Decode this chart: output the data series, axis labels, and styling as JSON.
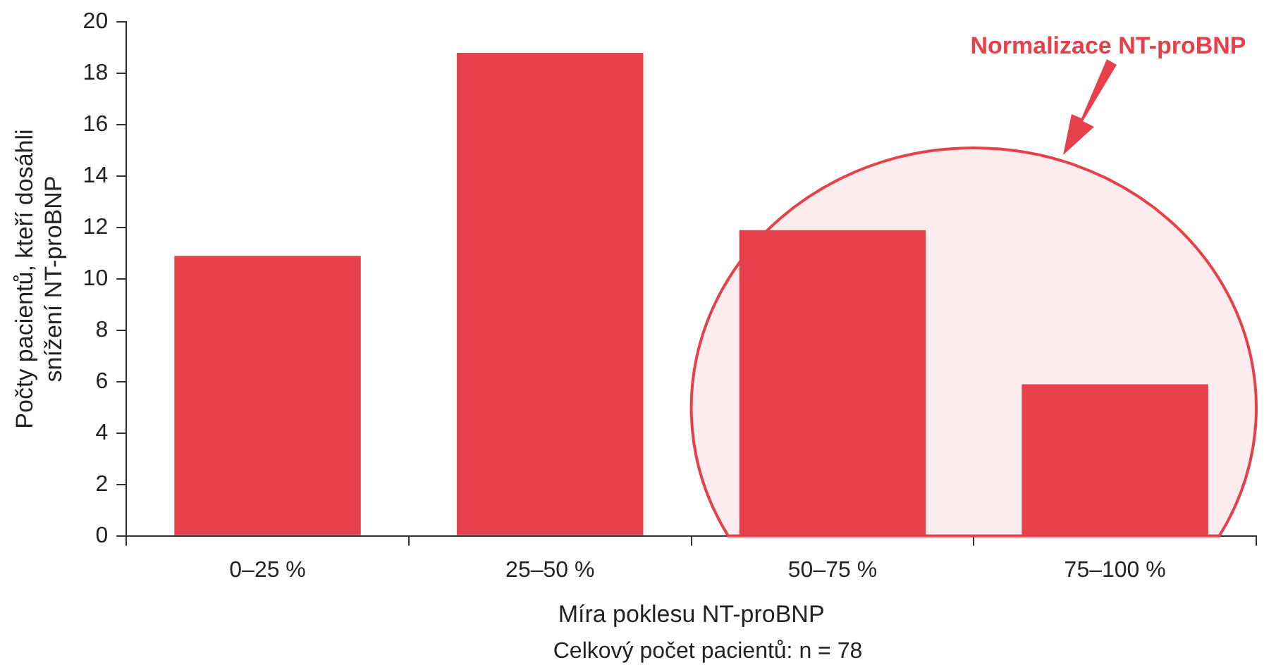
{
  "chart_data": {
    "type": "bar",
    "categories": [
      "0–25 %",
      "25–50 %",
      "50–75 %",
      "75–100 %"
    ],
    "values": [
      10.9,
      18.8,
      11.9,
      5.9
    ],
    "color": "#e8404b",
    "ylim": [
      0,
      20
    ],
    "yticks": [
      0,
      2,
      4,
      6,
      8,
      10,
      12,
      14,
      16,
      18,
      20
    ],
    "grid": false,
    "legend": false,
    "xlabel": "Míra poklesu NT-proBNP",
    "ylabel": "Počty pacientů, kteří dosáhli\nsnížení NT-proBNP",
    "bands": [
      {
        "axis": "x",
        "from": "50–75 %",
        "to": "75–100 %",
        "label": "Normalizace NT-proBNP",
        "color": "#e8404b"
      }
    ],
    "annotations": [
      "Celkový počet pacientů: n = 78"
    ]
  }
}
